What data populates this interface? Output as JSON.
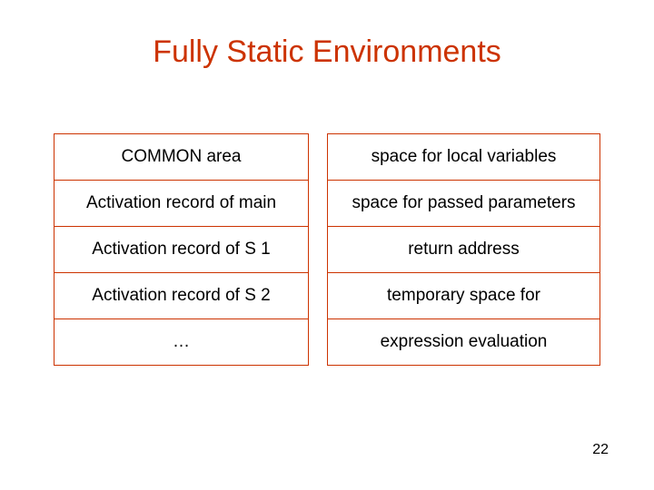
{
  "title": "Fully Static Environments",
  "title_color": "#cc3300",
  "border_color": "#cc3300",
  "text_color": "#000000",
  "background_color": "#ffffff",
  "left_table": {
    "rows": [
      "COMMON area",
      "Activation record of main",
      "Activation record of S 1",
      "Activation record of S 2",
      "…"
    ]
  },
  "right_table": {
    "rows": [
      "space for local variables",
      "space for passed parameters",
      "return address",
      "temporary space for",
      "expression evaluation"
    ]
  },
  "page_number": "22",
  "title_fontsize": 34,
  "cell_fontsize": 19,
  "page_number_fontsize": 16
}
